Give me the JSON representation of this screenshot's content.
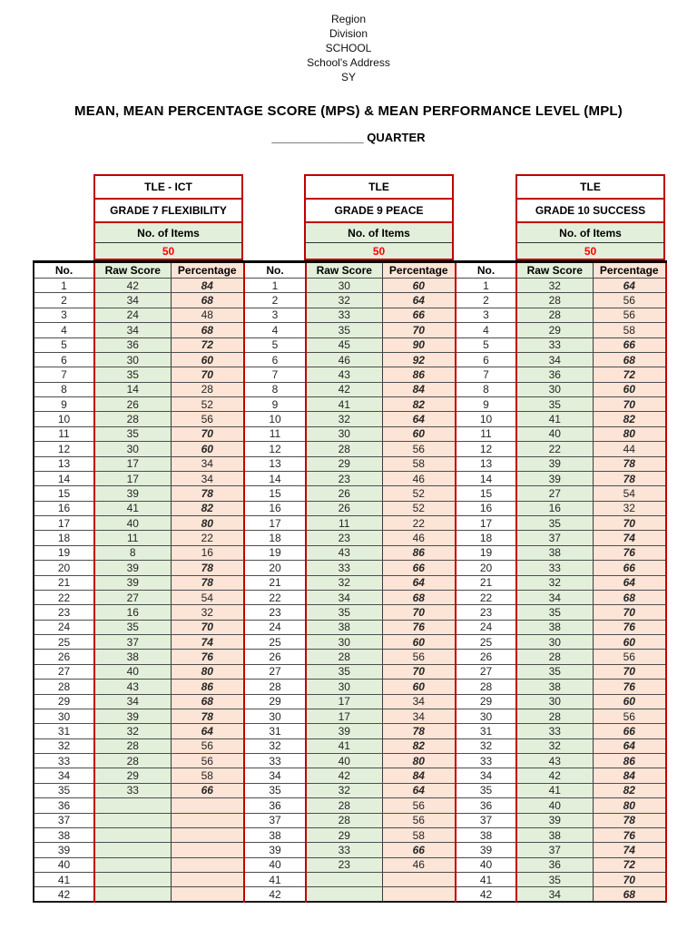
{
  "colors": {
    "accent-red": "#c00000",
    "value-blue": "#0070c0",
    "items-red": "#ff0000",
    "cell-green": "#e2efda",
    "cell-peach": "#fce4d6"
  },
  "letterhead": {
    "line1": "Region",
    "line2": "Division",
    "line3": "SCHOOL",
    "line4": "School's Address",
    "line5": "SY"
  },
  "title": "MEAN, MEAN PERCENTAGE SCORE (MPS) & MEAN PERFORMANCE LEVEL (MPL)",
  "quarter": {
    "blank": "______________",
    "label": "QUARTER"
  },
  "table": {
    "row_count": 42,
    "highlight_threshold": 60
  },
  "groups": [
    {
      "subject": "TLE - ICT",
      "grade": "GRADE 7 FLEXIBILITY",
      "items_label": "No. of Items",
      "items_value": "50",
      "columns": [
        "No.",
        "Raw Score",
        "Percentage"
      ],
      "rows": [
        [
          1,
          42,
          84
        ],
        [
          2,
          34,
          68
        ],
        [
          3,
          24,
          48
        ],
        [
          4,
          34,
          68
        ],
        [
          5,
          36,
          72
        ],
        [
          6,
          30,
          60
        ],
        [
          7,
          35,
          70
        ],
        [
          8,
          14,
          28
        ],
        [
          9,
          26,
          52
        ],
        [
          10,
          28,
          56
        ],
        [
          11,
          35,
          70
        ],
        [
          12,
          30,
          60
        ],
        [
          13,
          17,
          34
        ],
        [
          14,
          17,
          34
        ],
        [
          15,
          39,
          78
        ],
        [
          16,
          41,
          82
        ],
        [
          17,
          40,
          80
        ],
        [
          18,
          11,
          22
        ],
        [
          19,
          8,
          16
        ],
        [
          20,
          39,
          78
        ],
        [
          21,
          39,
          78
        ],
        [
          22,
          27,
          54
        ],
        [
          23,
          16,
          32
        ],
        [
          24,
          35,
          70
        ],
        [
          25,
          37,
          74
        ],
        [
          26,
          38,
          76
        ],
        [
          27,
          40,
          80
        ],
        [
          28,
          43,
          86
        ],
        [
          29,
          34,
          68
        ],
        [
          30,
          39,
          78
        ],
        [
          31,
          32,
          64
        ],
        [
          32,
          28,
          56
        ],
        [
          33,
          28,
          56
        ],
        [
          34,
          29,
          58
        ],
        [
          35,
          33,
          66
        ],
        [
          36,
          null,
          null
        ],
        [
          37,
          null,
          null
        ],
        [
          38,
          null,
          null
        ],
        [
          39,
          null,
          null
        ],
        [
          40,
          null,
          null
        ],
        [
          41,
          null,
          null
        ],
        [
          42,
          null,
          null
        ]
      ]
    },
    {
      "subject": "TLE",
      "grade": "GRADE 9 PEACE",
      "items_label": "No. of Items",
      "items_value": "50",
      "columns": [
        "No.",
        "Raw Score",
        "Percentage"
      ],
      "rows": [
        [
          1,
          30,
          60
        ],
        [
          2,
          32,
          64
        ],
        [
          3,
          33,
          66
        ],
        [
          4,
          35,
          70
        ],
        [
          5,
          45,
          90
        ],
        [
          6,
          46,
          92
        ],
        [
          7,
          43,
          86
        ],
        [
          8,
          42,
          84
        ],
        [
          9,
          41,
          82
        ],
        [
          10,
          32,
          64
        ],
        [
          11,
          30,
          60
        ],
        [
          12,
          28,
          56
        ],
        [
          13,
          29,
          58
        ],
        [
          14,
          23,
          46
        ],
        [
          15,
          26,
          52
        ],
        [
          16,
          26,
          52
        ],
        [
          17,
          11,
          22
        ],
        [
          18,
          23,
          46
        ],
        [
          19,
          43,
          86
        ],
        [
          20,
          33,
          66
        ],
        [
          21,
          32,
          64
        ],
        [
          22,
          34,
          68
        ],
        [
          23,
          35,
          70
        ],
        [
          24,
          38,
          76
        ],
        [
          25,
          30,
          60
        ],
        [
          26,
          28,
          56
        ],
        [
          27,
          35,
          70
        ],
        [
          28,
          30,
          60
        ],
        [
          29,
          17,
          34
        ],
        [
          30,
          17,
          34
        ],
        [
          31,
          39,
          78
        ],
        [
          32,
          41,
          82
        ],
        [
          33,
          40,
          80
        ],
        [
          34,
          42,
          84
        ],
        [
          35,
          32,
          64
        ],
        [
          36,
          28,
          56
        ],
        [
          37,
          28,
          56
        ],
        [
          38,
          29,
          58
        ],
        [
          39,
          33,
          66
        ],
        [
          40,
          23,
          46
        ],
        [
          41,
          null,
          null
        ],
        [
          42,
          null,
          null
        ]
      ]
    },
    {
      "subject": "TLE",
      "grade": "GRADE 10 SUCCESS",
      "items_label": "No. of Items",
      "items_value": "50",
      "columns": [
        "No.",
        "Raw Score",
        "Percentage"
      ],
      "rows": [
        [
          1,
          32,
          64
        ],
        [
          2,
          28,
          56
        ],
        [
          3,
          28,
          56
        ],
        [
          4,
          29,
          58
        ],
        [
          5,
          33,
          66
        ],
        [
          6,
          34,
          68
        ],
        [
          7,
          36,
          72
        ],
        [
          8,
          30,
          60
        ],
        [
          9,
          35,
          70
        ],
        [
          10,
          41,
          82
        ],
        [
          11,
          40,
          80
        ],
        [
          12,
          22,
          44
        ],
        [
          13,
          39,
          78
        ],
        [
          14,
          39,
          78
        ],
        [
          15,
          27,
          54
        ],
        [
          16,
          16,
          32
        ],
        [
          17,
          35,
          70
        ],
        [
          18,
          37,
          74
        ],
        [
          19,
          38,
          76
        ],
        [
          20,
          33,
          66
        ],
        [
          21,
          32,
          64
        ],
        [
          22,
          34,
          68
        ],
        [
          23,
          35,
          70
        ],
        [
          24,
          38,
          76
        ],
        [
          25,
          30,
          60
        ],
        [
          26,
          28,
          56
        ],
        [
          27,
          35,
          70
        ],
        [
          28,
          38,
          76
        ],
        [
          29,
          30,
          60
        ],
        [
          30,
          28,
          56
        ],
        [
          31,
          33,
          66
        ],
        [
          32,
          32,
          64
        ],
        [
          33,
          43,
          86
        ],
        [
          34,
          42,
          84
        ],
        [
          35,
          41,
          82
        ],
        [
          36,
          40,
          80
        ],
        [
          37,
          39,
          78
        ],
        [
          38,
          38,
          76
        ],
        [
          39,
          37,
          74
        ],
        [
          40,
          36,
          72
        ],
        [
          41,
          35,
          70
        ],
        [
          42,
          34,
          68
        ]
      ]
    }
  ]
}
